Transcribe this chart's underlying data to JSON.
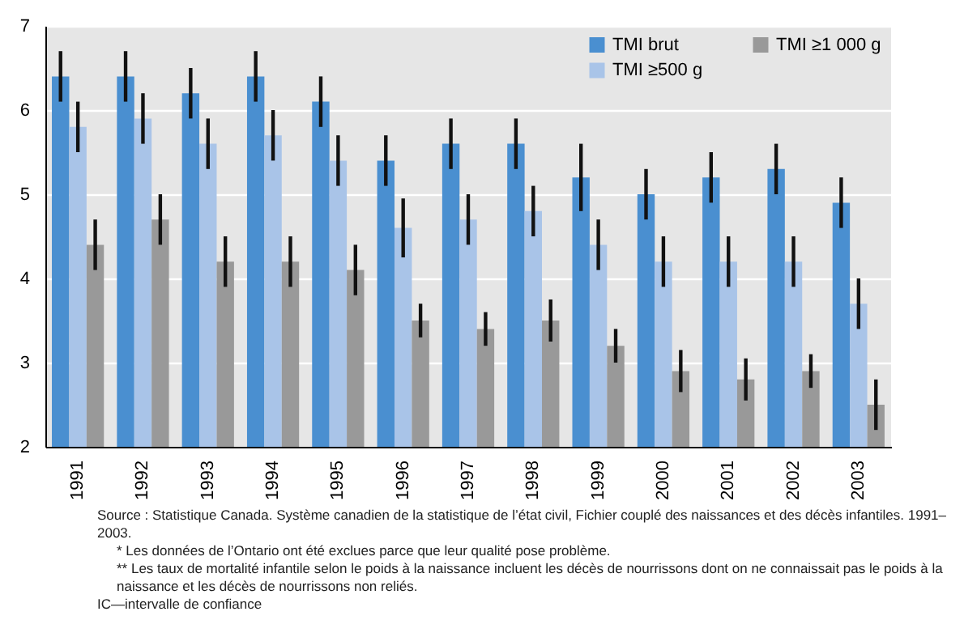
{
  "chart_data": {
    "type": "bar",
    "categories": [
      "1991",
      "1992",
      "1993",
      "1994",
      "1995",
      "1996",
      "1997",
      "1998",
      "1999",
      "2000",
      "2001",
      "2002",
      "2003"
    ],
    "series": [
      {
        "name": "TMI brut",
        "color": "#4a8fd0",
        "values": [
          6.4,
          6.4,
          6.2,
          6.4,
          6.1,
          5.4,
          5.6,
          5.6,
          5.2,
          5.0,
          5.2,
          5.3,
          4.9
        ],
        "errors": [
          0.3,
          0.3,
          0.3,
          0.3,
          0.3,
          0.3,
          0.3,
          0.3,
          0.4,
          0.3,
          0.3,
          0.3,
          0.3
        ]
      },
      {
        "name": "TMI ≥500 g",
        "color": "#a9c4e8",
        "values": [
          5.8,
          5.9,
          5.6,
          5.7,
          5.4,
          4.6,
          4.7,
          4.8,
          4.4,
          4.2,
          4.2,
          4.2,
          3.7
        ],
        "errors": [
          0.3,
          0.3,
          0.3,
          0.3,
          0.3,
          0.35,
          0.3,
          0.3,
          0.3,
          0.3,
          0.3,
          0.3,
          0.3
        ]
      },
      {
        "name": "TMI ≥1 000 g",
        "color": "#999999",
        "values": [
          4.4,
          4.7,
          4.2,
          4.2,
          4.1,
          3.5,
          3.4,
          3.5,
          3.2,
          2.9,
          2.8,
          2.9,
          2.5
        ],
        "errors": [
          0.3,
          0.3,
          0.3,
          0.3,
          0.3,
          0.2,
          0.2,
          0.25,
          0.2,
          0.25,
          0.25,
          0.2,
          0.3
        ]
      }
    ],
    "ylim": [
      2,
      7
    ],
    "yticks": [
      2,
      3,
      4,
      5,
      6,
      7
    ],
    "grid": "y",
    "legend": "top right",
    "annotations": [
      "Source : Statistique Canada. Système canadien de la statistique de l’état civil, Fichier couplé des naissances et des décès infantiles. 1991–2003.",
      "* Les données de l’Ontario ont été exclues parce que leur qualité pose problème.",
      "** Les taux de mortalité infantile selon le poids à la naissance incluent les décès de nourrissons dont on ne connaissait pas le poids à la naissance et les décès de nourrissons non reliés.",
      "IC—intervalle de confiance"
    ]
  }
}
